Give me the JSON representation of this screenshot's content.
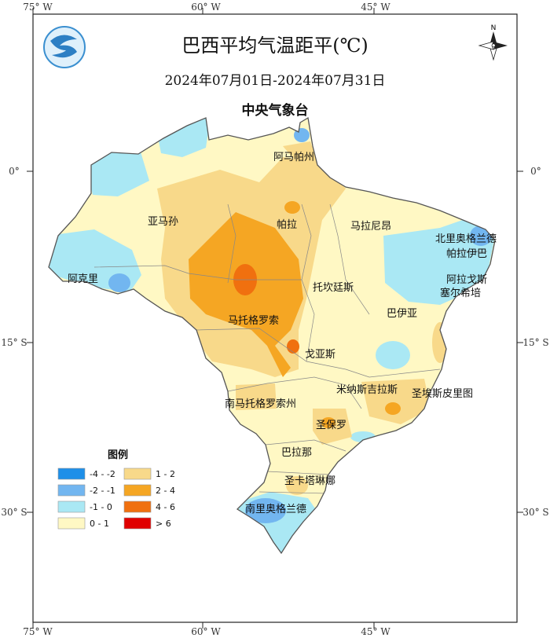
{
  "title": "巴西平均气温距平(℃)",
  "date_range": "2024年07月01日-2024年07月31日",
  "agency": "中央气象台",
  "north_label": "N",
  "axes": {
    "top_lon": [
      "75° W",
      "60° W",
      "45° W"
    ],
    "bottom_lon": [
      "75° W",
      "60° W",
      "45° W"
    ],
    "left_lat": [
      "0°",
      "15° S",
      "30° S"
    ],
    "right_lat": [
      "0°",
      "15° S",
      "30° S"
    ]
  },
  "regions": [
    "阿马帕州",
    "亚马孙",
    "帕拉",
    "马拉尼昂",
    "北里奥格兰德",
    "帕拉伊巴",
    "阿克里",
    "托坎廷斯",
    "阿拉戈斯",
    "塞尔希培",
    "马托格罗索",
    "巴伊亚",
    "戈亚斯",
    "米纳斯吉拉斯",
    "圣埃斯皮里图",
    "南马托格罗索州",
    "圣保罗",
    "巴拉那",
    "圣卡塔琳娜",
    "南里奥格兰德"
  ],
  "legend": {
    "title": "图例",
    "items": [
      {
        "label": "-4 - -2",
        "color": "#1e8fe8"
      },
      {
        "label": "1 - 2",
        "color": "#f8d98a"
      },
      {
        "label": "-2 - -1",
        "color": "#72b6f0"
      },
      {
        "label": "2 - 4",
        "color": "#f5a623"
      },
      {
        "label": "-1 - 0",
        "color": "#aae8f4"
      },
      {
        "label": "4 - 6",
        "color": "#f0700f"
      },
      {
        "label": "0 - 1",
        "color": "#fff8c4"
      },
      {
        "label": "> 6",
        "color": "#e00000"
      }
    ]
  },
  "colors": {
    "land_base": "#fff8c4",
    "border": "#555555",
    "frame": "#222222"
  }
}
